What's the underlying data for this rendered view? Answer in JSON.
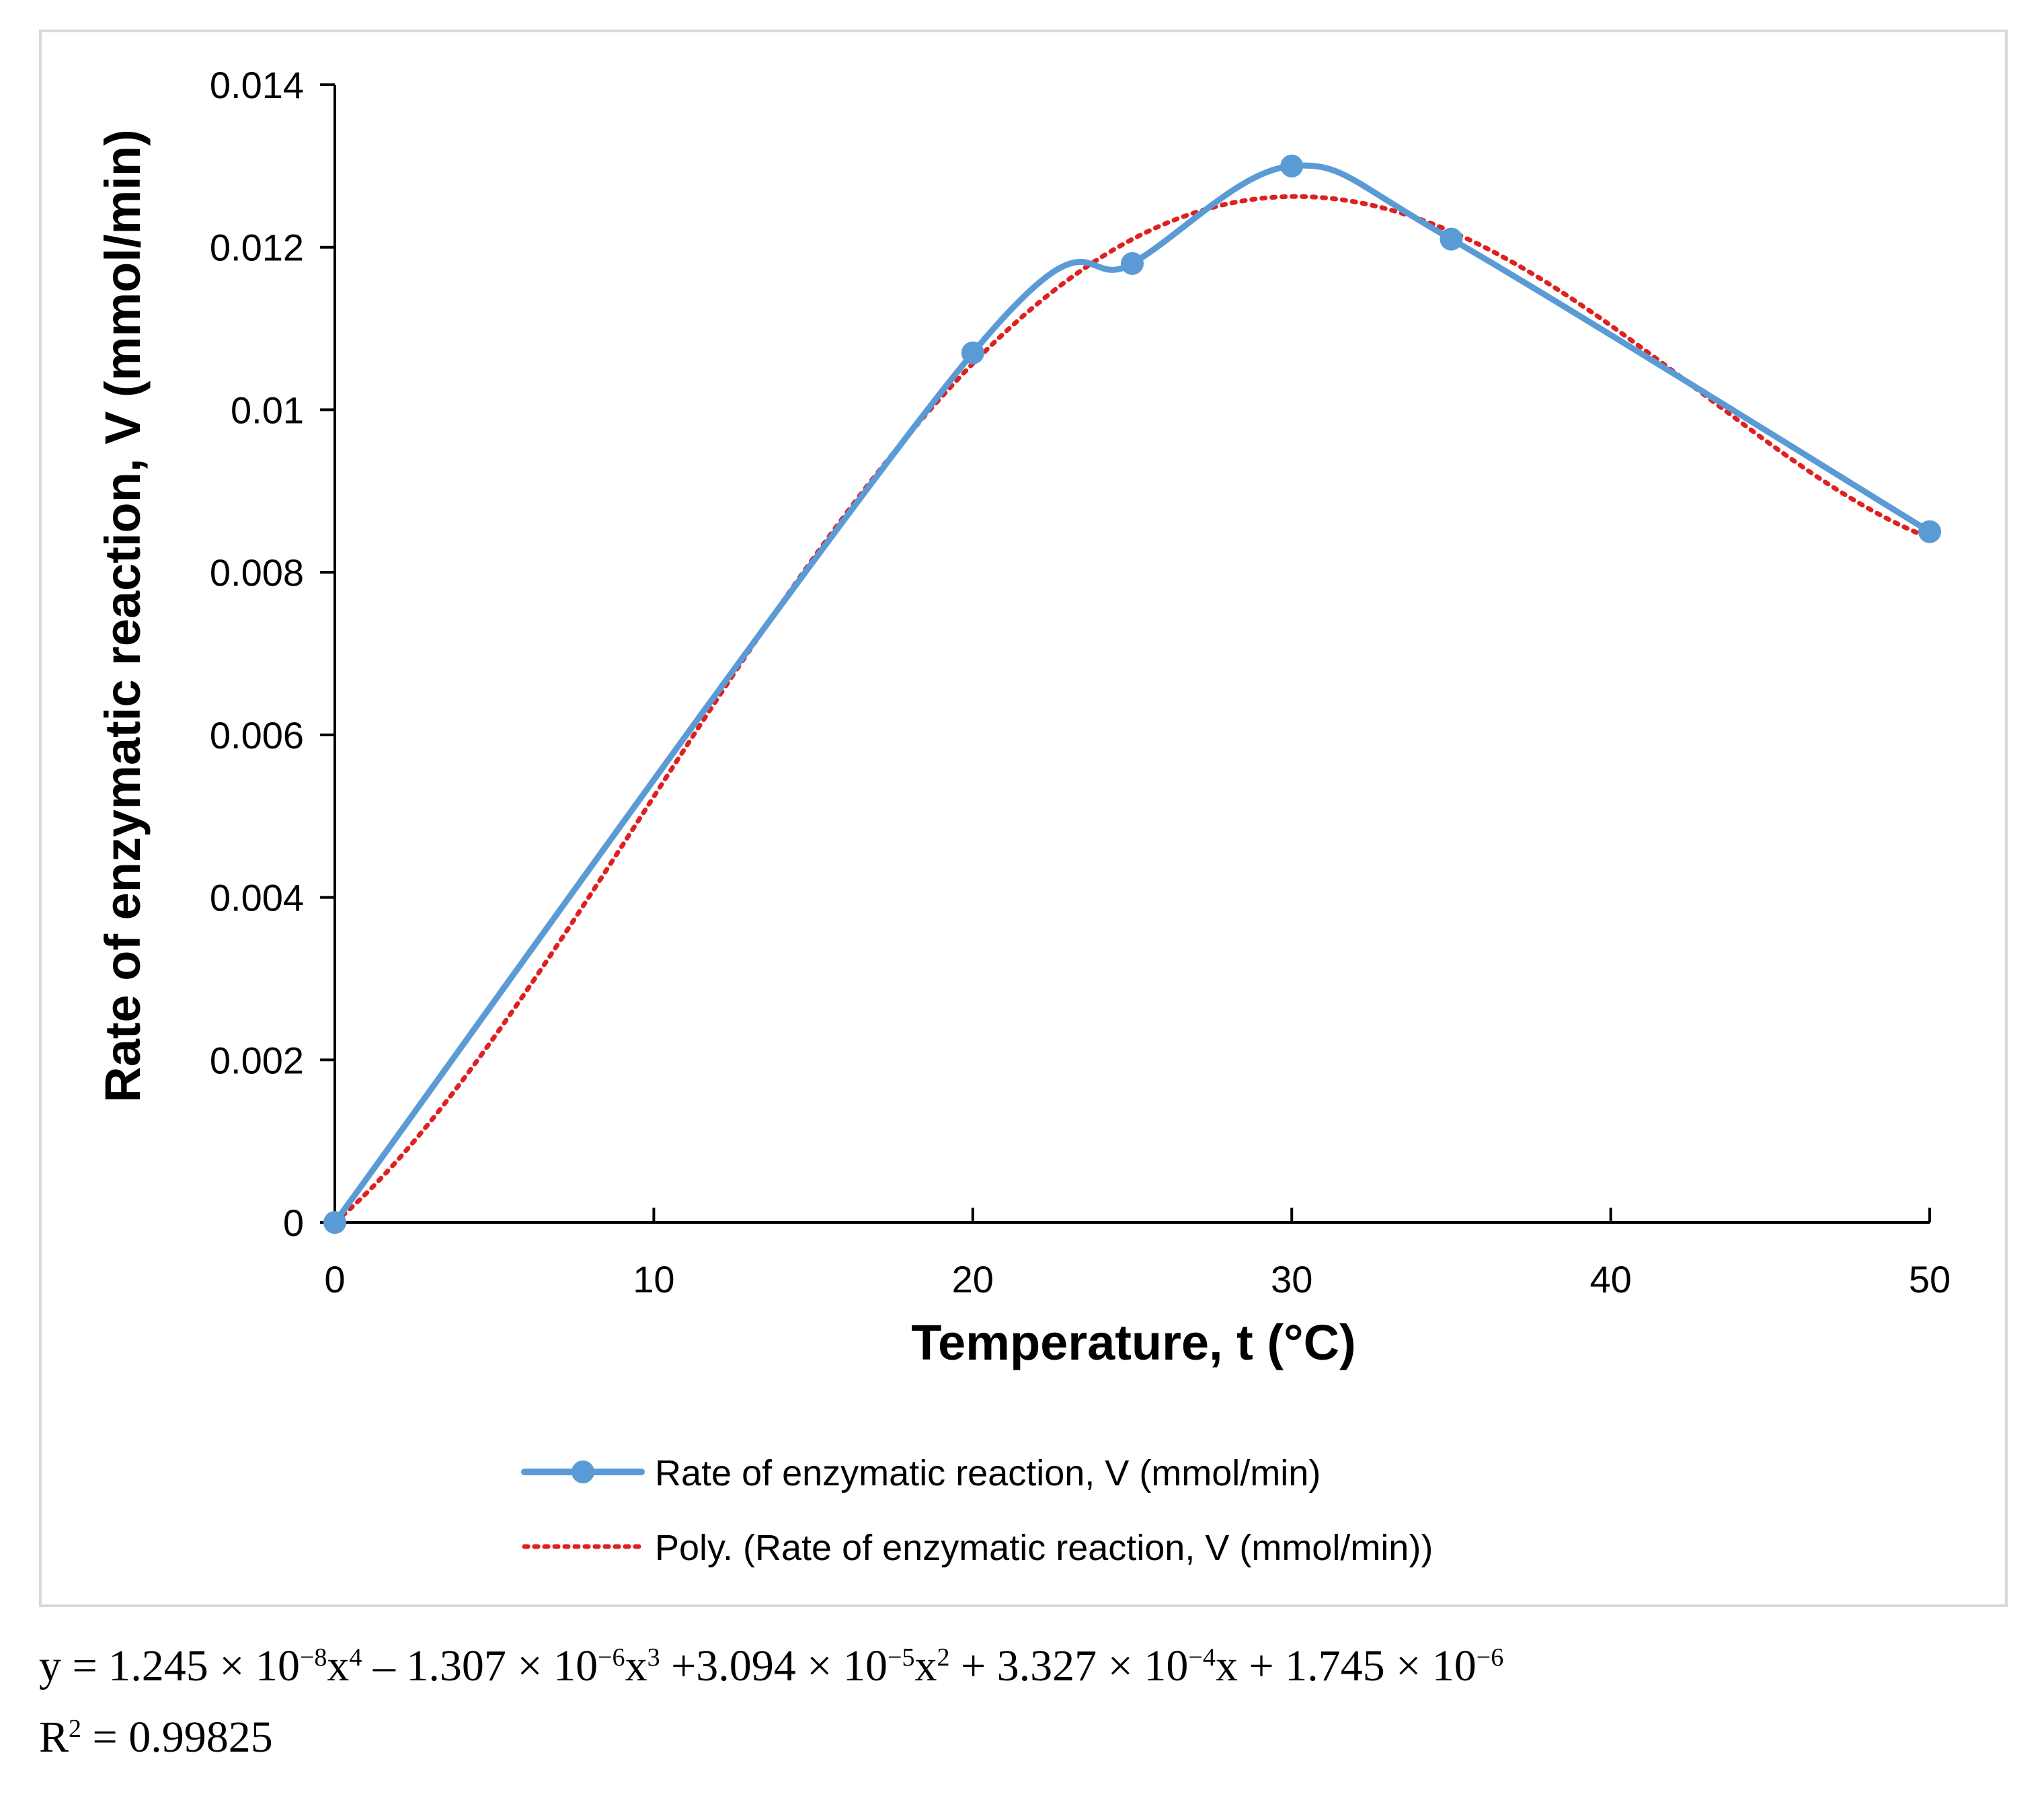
{
  "chart_data": {
    "type": "line",
    "title": "",
    "xlabel": "Temperature, t (°C)",
    "ylabel": "Rate of enzymatic reaction, V (mmol/min)",
    "xlim": [
      0,
      50
    ],
    "ylim": [
      0,
      0.014
    ],
    "x_ticks": [
      0,
      10,
      20,
      30,
      40,
      50
    ],
    "x_tick_labels": [
      "0",
      "10",
      "20",
      "30",
      "40",
      "50"
    ],
    "y_ticks": [
      0,
      0.002,
      0.004,
      0.006,
      0.008,
      0.01,
      0.012,
      0.014
    ],
    "y_tick_labels": [
      "0",
      "0.002",
      "0.004",
      "0.006",
      "0.008",
      "0.01",
      "0.012",
      "0.014"
    ],
    "grid": false,
    "legend_position": "bottom",
    "series": [
      {
        "name": "Rate of enzymatic reaction, V (mmol/min)",
        "style": "solid-smooth-markers",
        "color": "#5b9bd5",
        "x": [
          0,
          20,
          25,
          30,
          35,
          50
        ],
        "values": [
          0,
          0.0107,
          0.0118,
          0.013,
          0.0121,
          0.0085
        ]
      },
      {
        "name": "Poly. (Rate of enzymatic reaction, V (mmol/min))",
        "style": "dotted-trendline",
        "color": "#e02020",
        "polynomial_coefficients_high_to_low": [
          1.245e-08,
          -1.307e-06,
          3.094e-05,
          0.0003327,
          1.745e-06
        ]
      }
    ]
  },
  "equation": {
    "prefix": "y = 1.245 × 10",
    "exp1": "−8",
    "seg1": "x",
    "pow1": "4",
    "seg2": " – 1.307 × 10",
    "exp2": "−6",
    "seg3": "x",
    "pow2": "3",
    "seg4": " +3.094 × 10",
    "exp3": "−5",
    "seg5": "x",
    "pow3": "2",
    "seg6": " + 3.327 × 10",
    "exp4": "−4",
    "seg7": "x + 1.745 × 10",
    "exp5": "−6"
  },
  "r_squared": {
    "prefix": "R",
    "power": "2",
    "value": " = 0.99825"
  }
}
